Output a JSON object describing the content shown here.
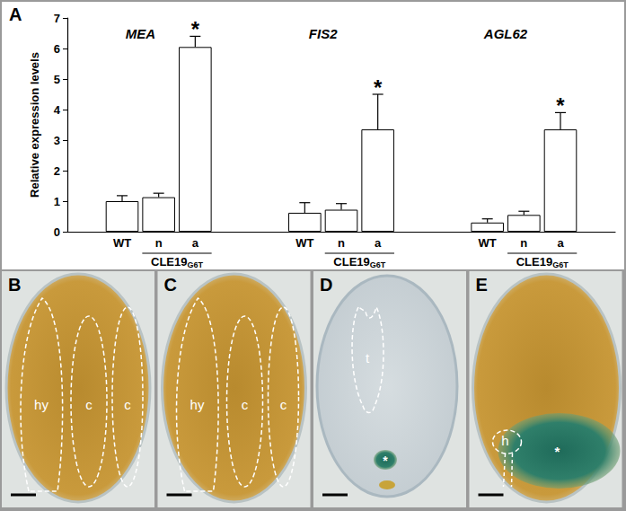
{
  "chart_data": {
    "type": "bar",
    "panel": "A",
    "ylabel": "Relative expression levels",
    "ylim": [
      0,
      7
    ],
    "yticks": [
      0,
      1,
      2,
      3,
      4,
      5,
      6,
      7
    ],
    "color": "#ffffff",
    "groups": [
      {
        "title": "MEA",
        "categories": [
          "WT",
          "n",
          "a"
        ],
        "values": [
          1.0,
          1.13,
          6.05
        ],
        "errors": [
          0.18,
          0.13,
          0.35
        ],
        "annotations": [
          null,
          null,
          "*"
        ]
      },
      {
        "title": "FIS2",
        "categories": [
          "WT",
          "n",
          "a"
        ],
        "values": [
          0.62,
          0.72,
          3.35
        ],
        "errors": [
          0.33,
          0.2,
          1.15
        ],
        "annotations": [
          null,
          null,
          "*"
        ]
      },
      {
        "title": "AGL62",
        "categories": [
          "WT",
          "n",
          "a"
        ],
        "values": [
          0.3,
          0.55,
          3.35
        ],
        "errors": [
          0.12,
          0.12,
          0.55
        ],
        "annotations": [
          null,
          null,
          "*"
        ]
      }
    ],
    "bracket": {
      "text": "CLE19",
      "subscript": "G6T",
      "categories": [
        "n",
        "a"
      ]
    }
  },
  "image_panels": [
    {
      "panel": "B",
      "labels": [
        "hy",
        "c",
        "c"
      ]
    },
    {
      "panel": "C",
      "labels": [
        "hy",
        "c",
        "c"
      ]
    },
    {
      "panel": "D",
      "labels": [
        "t",
        "*"
      ]
    },
    {
      "panel": "E",
      "labels": [
        "h",
        "*"
      ]
    }
  ]
}
